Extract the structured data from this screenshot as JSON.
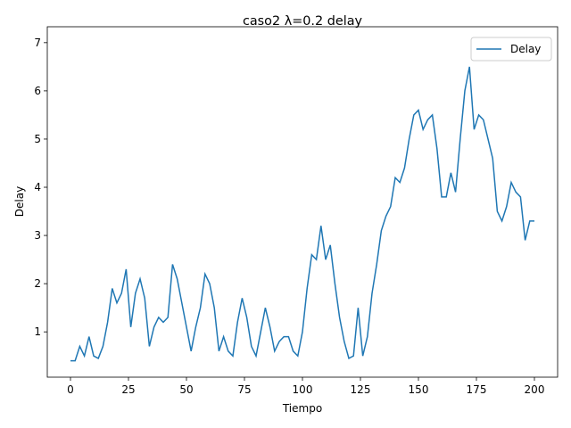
{
  "chart_data": {
    "type": "line",
    "title": "caso2 λ=0.2 delay",
    "xlabel": "Tiempo",
    "ylabel": "Delay",
    "x": [
      0,
      2,
      4,
      6,
      8,
      10,
      12,
      14,
      16,
      18,
      20,
      22,
      24,
      26,
      28,
      30,
      32,
      34,
      36,
      38,
      40,
      42,
      44,
      46,
      48,
      50,
      52,
      54,
      56,
      58,
      60,
      62,
      64,
      66,
      68,
      70,
      72,
      74,
      76,
      78,
      80,
      82,
      84,
      86,
      88,
      90,
      92,
      94,
      96,
      98,
      100,
      102,
      104,
      106,
      108,
      110,
      112,
      114,
      116,
      118,
      120,
      122,
      124,
      126,
      128,
      130,
      132,
      134,
      136,
      138,
      140,
      142,
      144,
      146,
      148,
      150,
      152,
      154,
      156,
      158,
      160,
      162,
      164,
      166,
      168,
      170,
      172,
      174,
      176,
      178,
      180,
      182,
      184,
      186,
      188,
      190,
      192,
      194,
      196,
      198,
      200
    ],
    "series": [
      {
        "name": "Delay",
        "color": "#1f77b4",
        "values": [
          0.4,
          0.4,
          0.7,
          0.5,
          0.9,
          0.5,
          0.45,
          0.7,
          1.2,
          1.9,
          1.6,
          1.8,
          2.3,
          1.1,
          1.8,
          2.1,
          1.7,
          0.7,
          1.1,
          1.3,
          1.2,
          1.3,
          2.4,
          2.1,
          1.6,
          1.1,
          0.6,
          1.1,
          1.5,
          2.2,
          2.0,
          1.5,
          0.6,
          0.9,
          0.6,
          0.5,
          1.2,
          1.7,
          1.3,
          0.7,
          0.5,
          1.0,
          1.5,
          1.1,
          0.6,
          0.8,
          0.9,
          0.9,
          0.6,
          0.5,
          1.0,
          1.9,
          2.6,
          2.5,
          3.2,
          2.5,
          2.8,
          2.0,
          1.3,
          0.8,
          0.45,
          0.5,
          1.5,
          0.5,
          0.9,
          1.8,
          2.4,
          3.1,
          3.4,
          3.6,
          4.2,
          4.1,
          4.4,
          5.0,
          5.5,
          5.6,
          5.2,
          5.4,
          5.5,
          4.8,
          3.8,
          3.8,
          4.3,
          3.9,
          5.0,
          6.0,
          6.5,
          5.2,
          5.5,
          5.4,
          5.0,
          4.6,
          3.5,
          3.3,
          3.6,
          4.1,
          3.9,
          3.8,
          2.9,
          3.3,
          3.3
        ]
      }
    ],
    "xlim": [
      -10,
      210
    ],
    "ylim": [
      0.06,
      7.33
    ],
    "xticks": [
      0,
      25,
      50,
      75,
      100,
      125,
      150,
      175,
      200
    ],
    "yticks": [
      1,
      2,
      3,
      4,
      5,
      6,
      7
    ],
    "legend": "upper right"
  }
}
